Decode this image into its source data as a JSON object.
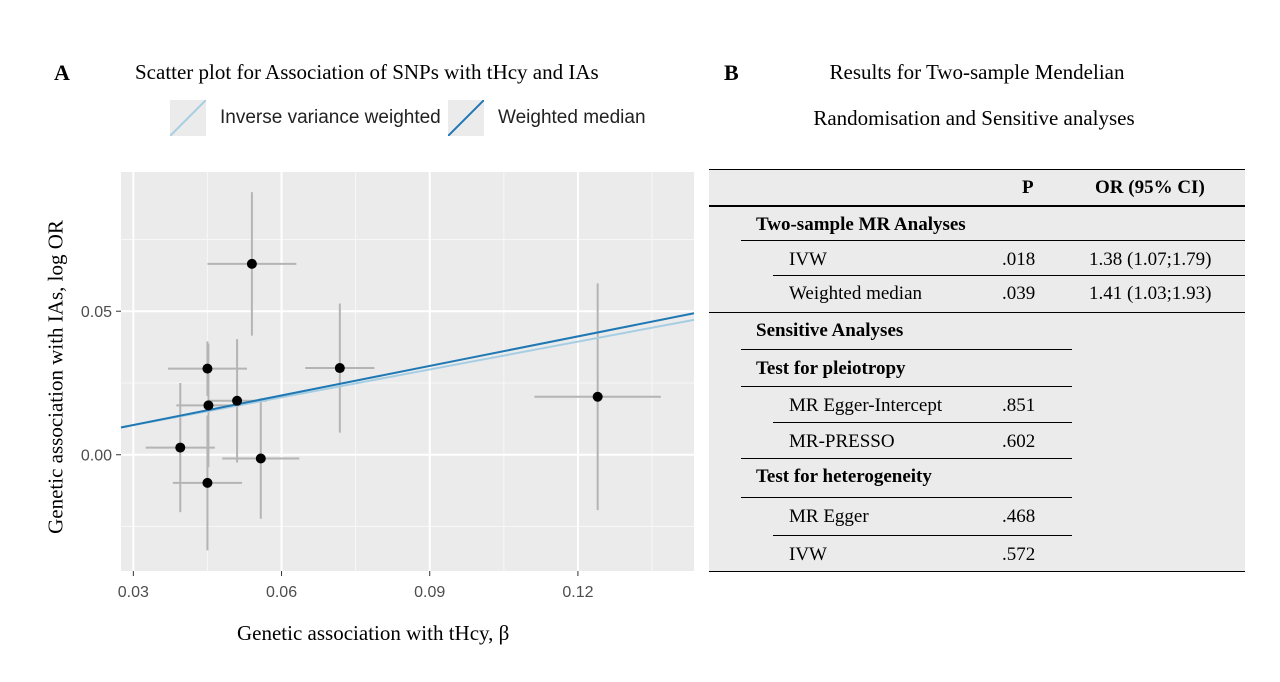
{
  "panel_a": {
    "letter": "A",
    "title": "Scatter plot for Association of SNPs with tHcy and IAs",
    "legend": [
      {
        "label": "Inverse variance weighted",
        "color": "#a6cee3"
      },
      {
        "label": "Weighted median",
        "color": "#1f78b4"
      }
    ]
  },
  "panel_b": {
    "letter": "B",
    "title_line1": "Results for Two-sample Mendelian",
    "title_line2": "Randomisation and Sensitive analyses"
  },
  "chart_data": {
    "type": "scatter",
    "title": "Scatter plot for Association of SNPs with tHcy and IAs",
    "xlabel": "Genetic association with tHcy, β",
    "ylabel": "Genetic association with IAs, log OR",
    "xlim": [
      0.0275,
      0.1435
    ],
    "ylim": [
      -0.0405,
      0.0985
    ],
    "xticks": [
      "0.03",
      "0.06",
      "0.09",
      "0.12"
    ],
    "yticks": [
      "0.00",
      "0.05"
    ],
    "grid": true,
    "legend_position": "top",
    "points": [
      {
        "x": 0.0395,
        "y": 0.0025,
        "xerr": 0.007,
        "yerr": 0.0225
      },
      {
        "x": 0.045,
        "y": 0.03,
        "xerr": 0.008,
        "yerr": 0.0095
      },
      {
        "x": 0.0452,
        "y": 0.0172,
        "xerr": 0.0065,
        "yerr": 0.0215
      },
      {
        "x": 0.045,
        "y": -0.0098,
        "xerr": 0.007,
        "yerr": 0.0235
      },
      {
        "x": 0.051,
        "y": 0.0188,
        "xerr": 0.006,
        "yerr": 0.0215
      },
      {
        "x": 0.054,
        "y": 0.0665,
        "xerr": 0.009,
        "yerr": 0.025
      },
      {
        "x": 0.0558,
        "y": -0.0013,
        "xerr": 0.0078,
        "yerr": 0.021
      },
      {
        "x": 0.0718,
        "y": 0.0302,
        "xerr": 0.007,
        "yerr": 0.0225
      },
      {
        "x": 0.124,
        "y": 0.0202,
        "xerr": 0.0128,
        "yerr": 0.0395
      }
    ],
    "series": [
      {
        "name": "Inverse variance weighted",
        "type": "line",
        "x": [
          0.0275,
          0.1435
        ],
        "y": [
          0.0095,
          0.047
        ],
        "color": "#a6cee3"
      },
      {
        "name": "Weighted median",
        "type": "line",
        "x": [
          0.0275,
          0.1435
        ],
        "y": [
          0.0095,
          0.0493
        ],
        "color": "#1f78b4"
      }
    ]
  },
  "table": {
    "headers": [
      "P",
      "OR (95% CI)"
    ],
    "rows": [
      {
        "label": "Two-sample MR Analyses",
        "p": "",
        "or": "",
        "bold": true
      },
      {
        "label": "IVW",
        "p": ".018",
        "or": "1.38 (1.07;1.79)",
        "bold": false
      },
      {
        "label": "Weighted median",
        "p": ".039",
        "or": "1.41 (1.03;1.93)",
        "bold": false
      },
      {
        "label": "Sensitive Analyses",
        "p": "",
        "or": "",
        "bold": true
      },
      {
        "label": "Test for pleiotropy",
        "p": "",
        "or": "",
        "bold": true
      },
      {
        "label": "MR Egger-Intercept",
        "p": ".851",
        "or": "",
        "bold": false
      },
      {
        "label": "MR-PRESSO",
        "p": ".602",
        "or": "",
        "bold": false
      },
      {
        "label": "Test for heterogeneity",
        "p": "",
        "or": "",
        "bold": true
      },
      {
        "label": "MR Egger",
        "p": ".468",
        "or": "",
        "bold": false
      },
      {
        "label": "IVW",
        "p": ".572",
        "or": "",
        "bold": false
      }
    ]
  }
}
